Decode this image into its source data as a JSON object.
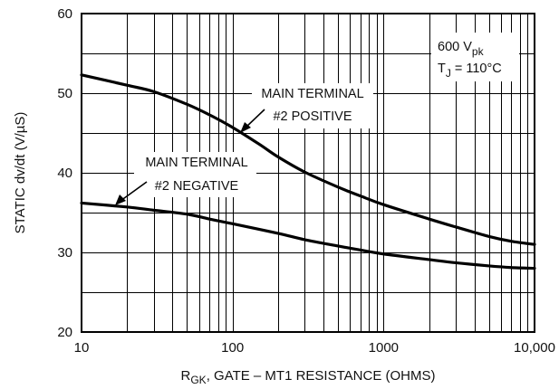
{
  "chart_data": {
    "type": "line",
    "x_scale": "log",
    "xlim": [
      10,
      10000
    ],
    "ylim": [
      20,
      60
    ],
    "grid": true,
    "x_ticks": [
      "10",
      "100",
      "1000",
      "10,000"
    ],
    "y_ticks": [
      "20",
      "30",
      "40",
      "50",
      "60"
    ],
    "xlabel": {
      "main": "R",
      "sub": "GK",
      "rest": ", GATE – MT1 RESISTANCE (OHMS)"
    },
    "ylabel": "STATIC dv/dt (V/µS)",
    "conditions": {
      "line1_main": "600 V",
      "line1_sub": "pk",
      "line2_main": "T",
      "line2_sub": "J",
      "line2_rest": " = 110°C"
    },
    "series": [
      {
        "name_line1": "MAIN TERMINAL",
        "name_line2": "#2 POSITIVE",
        "x": [
          10,
          20,
          30,
          50,
          70,
          100,
          150,
          200,
          300,
          500,
          700,
          1000,
          2000,
          3000,
          5000,
          7000,
          10000
        ],
        "y": [
          52.3,
          51.0,
          50.2,
          48.6,
          47.3,
          45.7,
          43.6,
          42.0,
          40.1,
          38.2,
          37.1,
          36.0,
          34.2,
          33.2,
          32.0,
          31.4,
          31.0
        ]
      },
      {
        "name_line1": "MAIN TERMINAL",
        "name_line2": "#2 NEGATIVE",
        "x": [
          10,
          20,
          30,
          50,
          70,
          100,
          200,
          300,
          500,
          700,
          1000,
          2000,
          3000,
          5000,
          7000,
          10000
        ],
        "y": [
          36.2,
          35.7,
          35.3,
          34.8,
          34.2,
          33.6,
          32.4,
          31.6,
          30.8,
          30.3,
          29.8,
          29.1,
          28.7,
          28.3,
          28.1,
          28.0
        ]
      }
    ]
  }
}
